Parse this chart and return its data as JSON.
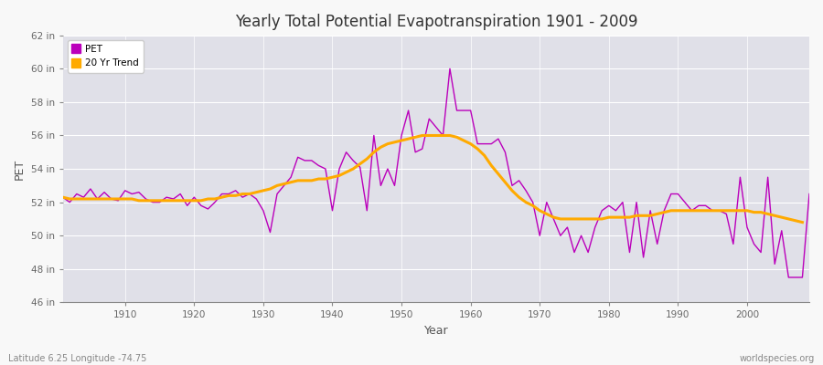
{
  "title": "Yearly Total Potential Evapotranspiration 1901 - 2009",
  "xlabel": "Year",
  "ylabel": "PET",
  "bottom_left_label": "Latitude 6.25 Longitude -74.75",
  "bottom_right_label": "worldspecies.org",
  "pet_color": "#bb00bb",
  "trend_color": "#ffaa00",
  "plot_bg_color": "#e0e0e8",
  "fig_bg_color": "#f8f8f8",
  "grid_color": "#ffffff",
  "ylim": [
    46,
    62
  ],
  "ytick_values": [
    46,
    48,
    50,
    52,
    54,
    56,
    58,
    60,
    62
  ],
  "ytick_labels": [
    "46 in",
    "48 in",
    "50 in",
    "52 in",
    "54 in",
    "56 in",
    "58 in",
    "60 in",
    "62 in"
  ],
  "xlim": [
    1901,
    2009
  ],
  "xtick_values": [
    1910,
    1920,
    1930,
    1940,
    1950,
    1960,
    1970,
    1980,
    1990,
    2000
  ],
  "years": [
    1901,
    1902,
    1903,
    1904,
    1905,
    1906,
    1907,
    1908,
    1909,
    1910,
    1911,
    1912,
    1913,
    1914,
    1915,
    1916,
    1917,
    1918,
    1919,
    1920,
    1921,
    1922,
    1923,
    1924,
    1925,
    1926,
    1927,
    1928,
    1929,
    1930,
    1931,
    1932,
    1933,
    1934,
    1935,
    1936,
    1937,
    1938,
    1939,
    1940,
    1941,
    1942,
    1943,
    1944,
    1945,
    1946,
    1947,
    1948,
    1949,
    1950,
    1951,
    1952,
    1953,
    1954,
    1955,
    1956,
    1957,
    1958,
    1959,
    1960,
    1961,
    1962,
    1963,
    1964,
    1965,
    1966,
    1967,
    1968,
    1969,
    1970,
    1971,
    1972,
    1973,
    1974,
    1975,
    1976,
    1977,
    1978,
    1979,
    1980,
    1981,
    1982,
    1983,
    1984,
    1985,
    1986,
    1987,
    1988,
    1989,
    1990,
    1991,
    1992,
    1993,
    1994,
    1995,
    1996,
    1997,
    1998,
    1999,
    2000,
    2001,
    2002,
    2003,
    2004,
    2005,
    2006,
    2007,
    2008,
    2009
  ],
  "pet_values": [
    52.3,
    52.0,
    52.5,
    52.3,
    52.8,
    52.2,
    52.6,
    52.2,
    52.1,
    52.7,
    52.5,
    52.6,
    52.2,
    52.0,
    52.0,
    52.3,
    52.2,
    52.5,
    51.8,
    52.3,
    51.8,
    51.6,
    52.0,
    52.5,
    52.5,
    52.7,
    52.3,
    52.5,
    52.2,
    51.5,
    50.2,
    52.5,
    53.0,
    53.5,
    54.7,
    54.5,
    54.5,
    54.2,
    54.0,
    51.5,
    54.0,
    55.0,
    54.5,
    54.1,
    51.5,
    56.0,
    53.0,
    54.0,
    53.0,
    56.0,
    57.5,
    55.0,
    55.2,
    57.0,
    56.5,
    56.0,
    60.0,
    57.5,
    57.5,
    57.5,
    55.5,
    55.5,
    55.5,
    55.8,
    55.0,
    53.0,
    53.3,
    52.7,
    52.0,
    50.0,
    52.0,
    51.0,
    50.0,
    50.5,
    49.0,
    50.0,
    49.0,
    50.5,
    51.5,
    51.8,
    51.5,
    52.0,
    49.0,
    52.0,
    48.7,
    51.5,
    49.5,
    51.5,
    52.5,
    52.5,
    52.0,
    51.5,
    51.8,
    51.8,
    51.5,
    51.5,
    51.3,
    49.5,
    53.5,
    50.5,
    49.5,
    49.0,
    53.5,
    48.3,
    50.3,
    47.5,
    47.5,
    47.5,
    52.5
  ],
  "trend_values": [
    52.3,
    52.2,
    52.2,
    52.2,
    52.2,
    52.2,
    52.2,
    52.2,
    52.2,
    52.2,
    52.2,
    52.1,
    52.1,
    52.1,
    52.1,
    52.1,
    52.1,
    52.1,
    52.1,
    52.1,
    52.1,
    52.2,
    52.2,
    52.3,
    52.4,
    52.4,
    52.5,
    52.5,
    52.6,
    52.7,
    52.8,
    53.0,
    53.1,
    53.2,
    53.3,
    53.3,
    53.3,
    53.4,
    53.4,
    53.5,
    53.6,
    53.8,
    54.0,
    54.3,
    54.6,
    55.0,
    55.3,
    55.5,
    55.6,
    55.7,
    55.8,
    55.9,
    56.0,
    56.0,
    56.0,
    56.0,
    56.0,
    55.9,
    55.7,
    55.5,
    55.2,
    54.8,
    54.2,
    53.7,
    53.2,
    52.7,
    52.3,
    52.0,
    51.8,
    51.5,
    51.3,
    51.1,
    51.0,
    51.0,
    51.0,
    51.0,
    51.0,
    51.0,
    51.0,
    51.1,
    51.1,
    51.1,
    51.1,
    51.2,
    51.2,
    51.2,
    51.3,
    51.4,
    51.5,
    51.5,
    51.5,
    51.5,
    51.5,
    51.5,
    51.5,
    51.5,
    51.5,
    51.5,
    51.5,
    51.5,
    51.4,
    51.4,
    51.3,
    51.2,
    51.1,
    51.0,
    50.9,
    50.8,
    null
  ]
}
